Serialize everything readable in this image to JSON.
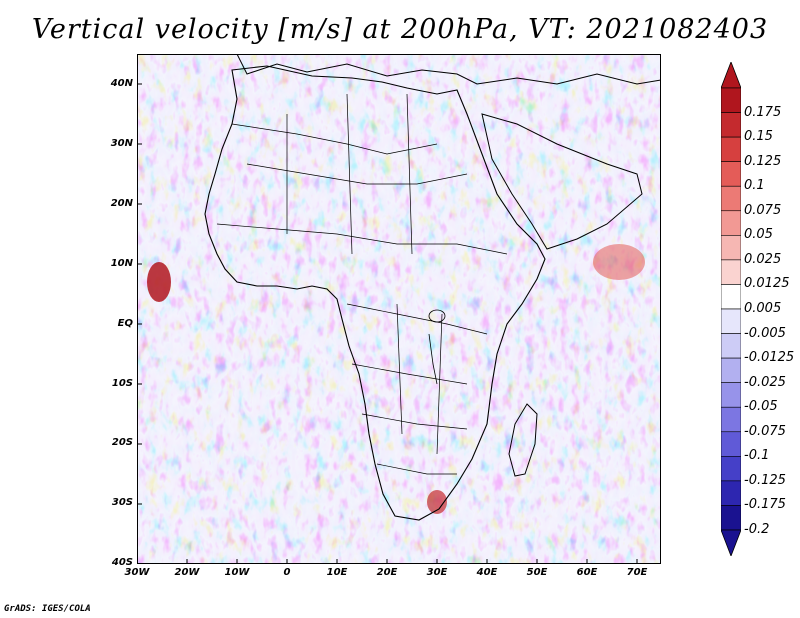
{
  "title": "Vertical velocity [m/s] at 200hPa, VT: 2021082403",
  "map": {
    "region": "Africa",
    "projection": "lat-lon",
    "lon_range": [
      -30,
      75
    ],
    "lat_range": [
      -40,
      45
    ],
    "lat_labels": [
      "40N",
      "30N",
      "20N",
      "10N",
      "EQ",
      "10S",
      "20S",
      "30S",
      "40S"
    ],
    "lon_labels": [
      "30W",
      "20W",
      "10W",
      "0",
      "10E",
      "20E",
      "30E",
      "40E",
      "50E",
      "60E",
      "70E"
    ]
  },
  "colorbar": {
    "labels": [
      "0.175",
      "0.15",
      "0.125",
      "0.1",
      "0.075",
      "0.05",
      "0.025",
      "0.0125",
      "0.005",
      "-0.005",
      "-0.0125",
      "-0.025",
      "-0.05",
      "-0.075",
      "-0.1",
      "-0.125",
      "-0.175",
      "-0.2"
    ],
    "colors": [
      "#b0161e",
      "#c42a2e",
      "#d6403f",
      "#e45c58",
      "#ec7a75",
      "#f29994",
      "#f6b7b3",
      "#fad3d0",
      "#ffffff",
      "#e6e6fb",
      "#cdccf6",
      "#b2b0f0",
      "#9793ea",
      "#7c76e2",
      "#605ad7",
      "#4540c8",
      "#2d26b0",
      "#1a1290"
    ],
    "max_color": "#b0161e",
    "min_color": "#1a1290"
  },
  "credit": "GrADS: IGES/COLA"
}
